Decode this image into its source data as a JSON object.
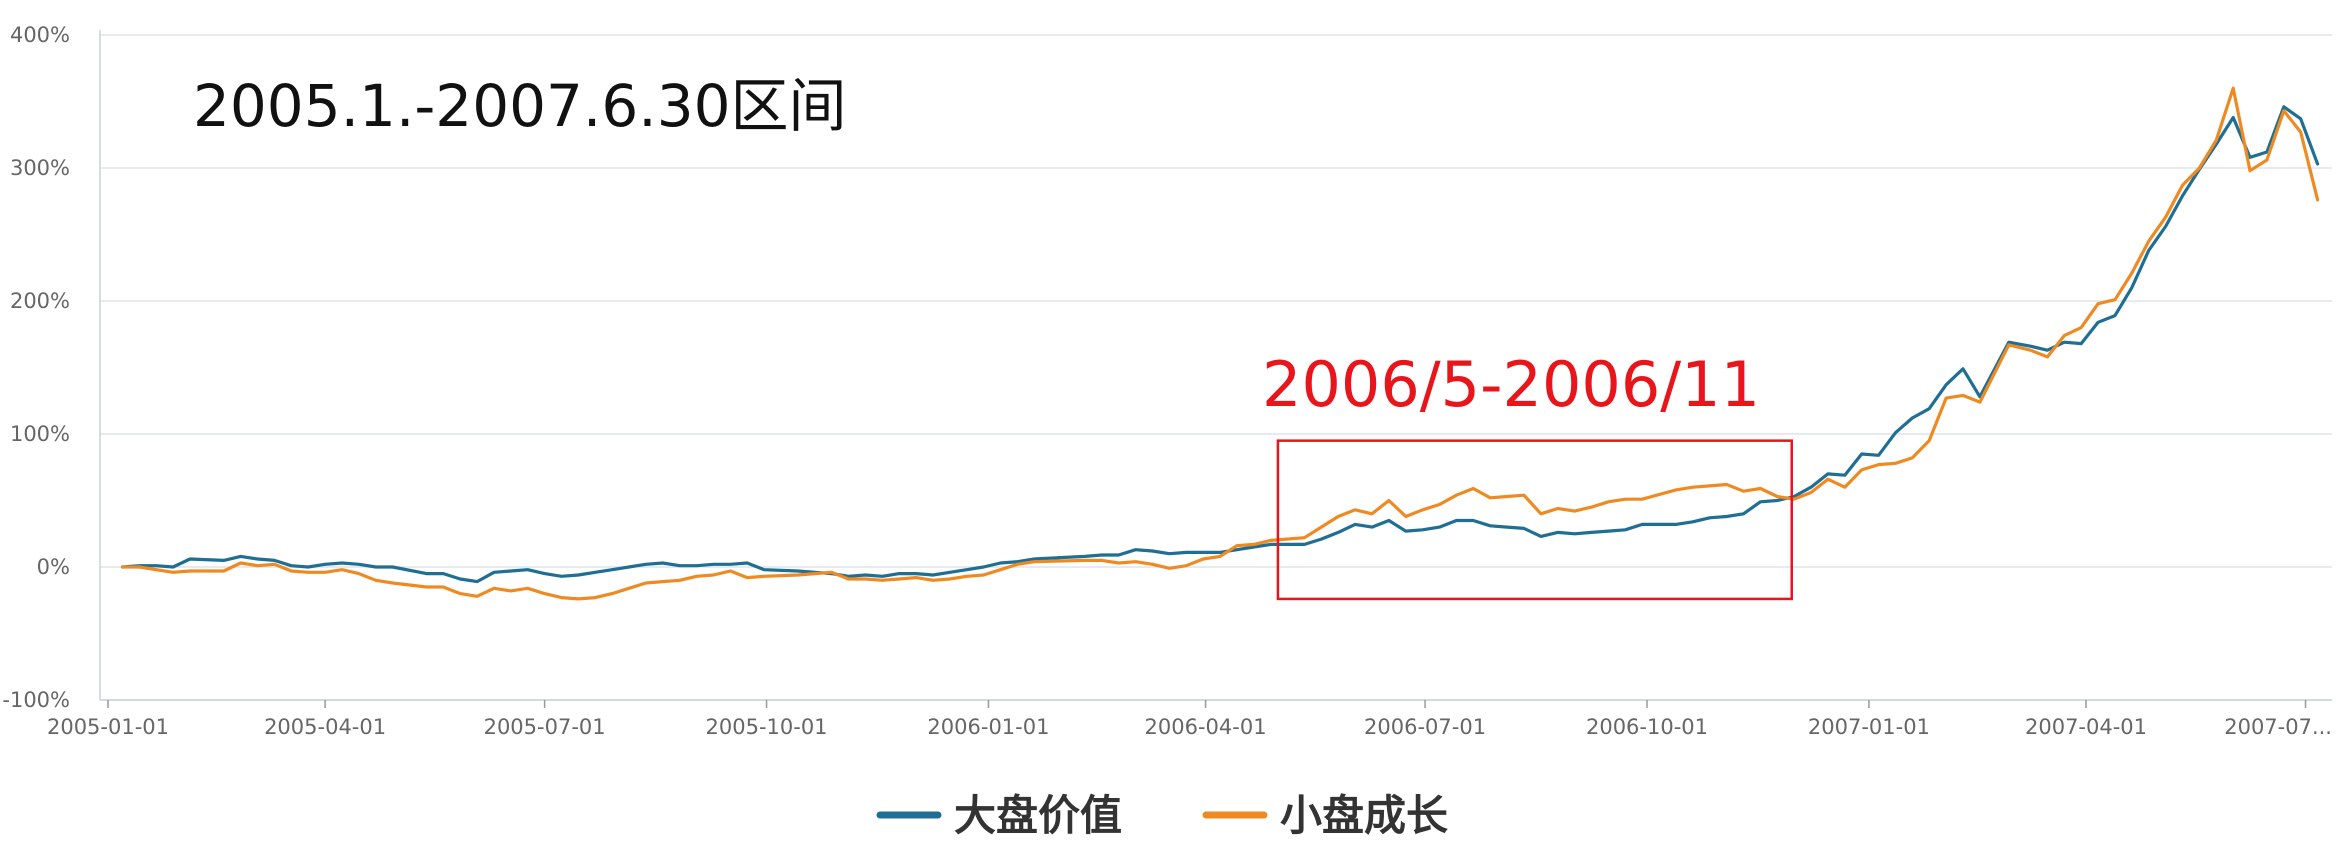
{
  "chart_data": {
    "type": "line",
    "ylim": [
      -100,
      400
    ],
    "y_ticks": [
      "400%",
      "300%",
      "200%",
      "100%",
      "0%",
      "-100%"
    ],
    "y_tick_values": [
      400,
      300,
      200,
      100,
      0,
      -100
    ],
    "x_ticks": [
      "2005-01-01",
      "2005-04-01",
      "2005-07-01",
      "2005-10-01",
      "2006-01-01",
      "2006-04-01",
      "2006-07-01",
      "2006-10-01",
      "2007-01-01",
      "2007-04-01",
      "2007-07..."
    ],
    "x_tick_dates": [
      "2005-01-01",
      "2005-04-01",
      "2005-07-01",
      "2005-10-01",
      "2006-01-01",
      "2006-04-01",
      "2006-07-01",
      "2006-10-01",
      "2007-01-01",
      "2007-04-01",
      "2007-07-01"
    ],
    "grid": true,
    "legend_position": "bottom",
    "annotation_title": "2005.1.-2007.6.30区间",
    "highlight": {
      "label": "2006/5-2006/11",
      "x_range": [
        "2006-05-01",
        "2006-11-30"
      ],
      "y_range": [
        -24,
        95
      ],
      "color": "#e8151b"
    },
    "series": [
      {
        "name": "大盘价值",
        "color": "#1f6e94",
        "points": [
          [
            "2005-01-07",
            0
          ],
          [
            "2005-01-14",
            1
          ],
          [
            "2005-01-21",
            1
          ],
          [
            "2005-01-28",
            0
          ],
          [
            "2005-02-04",
            6
          ],
          [
            "2005-02-18",
            5
          ],
          [
            "2005-02-25",
            8
          ],
          [
            "2005-03-04",
            6
          ],
          [
            "2005-03-11",
            5
          ],
          [
            "2005-03-18",
            1
          ],
          [
            "2005-03-25",
            0
          ],
          [
            "2005-04-01",
            2
          ],
          [
            "2005-04-08",
            3
          ],
          [
            "2005-04-15",
            2
          ],
          [
            "2005-04-22",
            0
          ],
          [
            "2005-04-29",
            0
          ],
          [
            "2005-05-13",
            -5
          ],
          [
            "2005-05-20",
            -5
          ],
          [
            "2005-05-27",
            -9
          ],
          [
            "2005-06-03",
            -11
          ],
          [
            "2005-06-10",
            -4
          ],
          [
            "2005-06-17",
            -3
          ],
          [
            "2005-06-24",
            -2
          ],
          [
            "2005-07-01",
            -5
          ],
          [
            "2005-07-08",
            -7
          ],
          [
            "2005-07-15",
            -6
          ],
          [
            "2005-07-22",
            -4
          ],
          [
            "2005-07-29",
            -2
          ],
          [
            "2005-08-05",
            0
          ],
          [
            "2005-08-12",
            2
          ],
          [
            "2005-08-19",
            3
          ],
          [
            "2005-08-26",
            1
          ],
          [
            "2005-09-02",
            1
          ],
          [
            "2005-09-09",
            2
          ],
          [
            "2005-09-16",
            2
          ],
          [
            "2005-09-23",
            3
          ],
          [
            "2005-09-30",
            -2
          ],
          [
            "2005-10-14",
            -3
          ],
          [
            "2005-10-21",
            -4
          ],
          [
            "2005-10-28",
            -5
          ],
          [
            "2005-11-04",
            -7
          ],
          [
            "2005-11-11",
            -6
          ],
          [
            "2005-11-18",
            -7
          ],
          [
            "2005-11-25",
            -5
          ],
          [
            "2005-12-02",
            -5
          ],
          [
            "2005-12-09",
            -6
          ],
          [
            "2005-12-16",
            -4
          ],
          [
            "2005-12-23",
            -2
          ],
          [
            "2005-12-30",
            0
          ],
          [
            "2006-01-06",
            3
          ],
          [
            "2006-01-13",
            4
          ],
          [
            "2006-01-20",
            6
          ],
          [
            "2006-02-10",
            8
          ],
          [
            "2006-02-17",
            9
          ],
          [
            "2006-02-24",
            9
          ],
          [
            "2006-03-03",
            13
          ],
          [
            "2006-03-10",
            12
          ],
          [
            "2006-03-17",
            10
          ],
          [
            "2006-03-24",
            11
          ],
          [
            "2006-03-31",
            11
          ],
          [
            "2006-04-07",
            11
          ],
          [
            "2006-04-14",
            13
          ],
          [
            "2006-04-21",
            15
          ],
          [
            "2006-04-28",
            17
          ],
          [
            "2006-05-12",
            17
          ],
          [
            "2006-05-19",
            21
          ],
          [
            "2006-05-26",
            26
          ],
          [
            "2006-06-02",
            32
          ],
          [
            "2006-06-09",
            30
          ],
          [
            "2006-06-16",
            35
          ],
          [
            "2006-06-23",
            27
          ],
          [
            "2006-06-30",
            28
          ],
          [
            "2006-07-07",
            30
          ],
          [
            "2006-07-14",
            35
          ],
          [
            "2006-07-21",
            35
          ],
          [
            "2006-07-28",
            31
          ],
          [
            "2006-08-04",
            30
          ],
          [
            "2006-08-11",
            29
          ],
          [
            "2006-08-18",
            23
          ],
          [
            "2006-08-25",
            26
          ],
          [
            "2006-09-01",
            25
          ],
          [
            "2006-09-08",
            26
          ],
          [
            "2006-09-15",
            27
          ],
          [
            "2006-09-22",
            28
          ],
          [
            "2006-09-29",
            32
          ],
          [
            "2006-10-13",
            32
          ],
          [
            "2006-10-20",
            34
          ],
          [
            "2006-10-27",
            37
          ],
          [
            "2006-11-03",
            38
          ],
          [
            "2006-11-10",
            40
          ],
          [
            "2006-11-17",
            49
          ],
          [
            "2006-11-24",
            50
          ],
          [
            "2006-12-01",
            53
          ],
          [
            "2006-12-08",
            60
          ],
          [
            "2006-12-15",
            70
          ],
          [
            "2006-12-22",
            69
          ],
          [
            "2006-12-29",
            85
          ],
          [
            "2007-01-05",
            84
          ],
          [
            "2007-01-12",
            101
          ],
          [
            "2007-01-19",
            112
          ],
          [
            "2007-01-26",
            119
          ],
          [
            "2007-02-02",
            137
          ],
          [
            "2007-02-09",
            149
          ],
          [
            "2007-02-16",
            128
          ],
          [
            "2007-02-28",
            169
          ],
          [
            "2007-03-09",
            166
          ],
          [
            "2007-03-16",
            163
          ],
          [
            "2007-03-23",
            169
          ],
          [
            "2007-03-30",
            168
          ],
          [
            "2007-04-06",
            184
          ],
          [
            "2007-04-13",
            189
          ],
          [
            "2007-04-20",
            210
          ],
          [
            "2007-04-27",
            238
          ],
          [
            "2007-05-04",
            256
          ],
          [
            "2007-05-11",
            279
          ],
          [
            "2007-05-18",
            299
          ],
          [
            "2007-05-25",
            318
          ],
          [
            "2007-06-01",
            338
          ],
          [
            "2007-06-08",
            308
          ],
          [
            "2007-06-15",
            312
          ],
          [
            "2007-06-22",
            346
          ],
          [
            "2007-06-29",
            337
          ],
          [
            "2007-07-06",
            303
          ]
        ]
      },
      {
        "name": "小盘成长",
        "color": "#ef8a22",
        "points": [
          [
            "2005-01-07",
            0
          ],
          [
            "2005-01-14",
            0
          ],
          [
            "2005-01-21",
            -2
          ],
          [
            "2005-01-28",
            -4
          ],
          [
            "2005-02-04",
            -3
          ],
          [
            "2005-02-18",
            -3
          ],
          [
            "2005-02-25",
            3
          ],
          [
            "2005-03-04",
            1
          ],
          [
            "2005-03-11",
            2
          ],
          [
            "2005-03-18",
            -3
          ],
          [
            "2005-03-25",
            -4
          ],
          [
            "2005-04-01",
            -4
          ],
          [
            "2005-04-08",
            -2
          ],
          [
            "2005-04-15",
            -5
          ],
          [
            "2005-04-22",
            -10
          ],
          [
            "2005-04-29",
            -12
          ],
          [
            "2005-05-13",
            -15
          ],
          [
            "2005-05-20",
            -15
          ],
          [
            "2005-05-27",
            -20
          ],
          [
            "2005-06-03",
            -22
          ],
          [
            "2005-06-10",
            -16
          ],
          [
            "2005-06-17",
            -18
          ],
          [
            "2005-06-24",
            -16
          ],
          [
            "2005-07-01",
            -20
          ],
          [
            "2005-07-08",
            -23
          ],
          [
            "2005-07-15",
            -24
          ],
          [
            "2005-07-22",
            -23
          ],
          [
            "2005-07-29",
            -20
          ],
          [
            "2005-08-05",
            -16
          ],
          [
            "2005-08-12",
            -12
          ],
          [
            "2005-08-19",
            -11
          ],
          [
            "2005-08-26",
            -10
          ],
          [
            "2005-09-02",
            -7
          ],
          [
            "2005-09-09",
            -6
          ],
          [
            "2005-09-16",
            -3
          ],
          [
            "2005-09-23",
            -8
          ],
          [
            "2005-09-30",
            -7
          ],
          [
            "2005-10-14",
            -6
          ],
          [
            "2005-10-21",
            -5
          ],
          [
            "2005-10-28",
            -4
          ],
          [
            "2005-11-04",
            -9
          ],
          [
            "2005-11-11",
            -9
          ],
          [
            "2005-11-18",
            -10
          ],
          [
            "2005-11-25",
            -9
          ],
          [
            "2005-12-02",
            -8
          ],
          [
            "2005-12-09",
            -10
          ],
          [
            "2005-12-16",
            -9
          ],
          [
            "2005-12-23",
            -7
          ],
          [
            "2005-12-30",
            -6
          ],
          [
            "2006-01-06",
            -2
          ],
          [
            "2006-01-13",
            2
          ],
          [
            "2006-01-20",
            4
          ],
          [
            "2006-02-10",
            5
          ],
          [
            "2006-02-17",
            5
          ],
          [
            "2006-02-24",
            3
          ],
          [
            "2006-03-03",
            4
          ],
          [
            "2006-03-10",
            2
          ],
          [
            "2006-03-17",
            -1
          ],
          [
            "2006-03-24",
            1
          ],
          [
            "2006-03-31",
            6
          ],
          [
            "2006-04-07",
            8
          ],
          [
            "2006-04-14",
            16
          ],
          [
            "2006-04-21",
            17
          ],
          [
            "2006-04-28",
            20
          ],
          [
            "2006-05-12",
            22
          ],
          [
            "2006-05-19",
            30
          ],
          [
            "2006-05-26",
            38
          ],
          [
            "2006-06-02",
            43
          ],
          [
            "2006-06-09",
            40
          ],
          [
            "2006-06-16",
            50
          ],
          [
            "2006-06-23",
            38
          ],
          [
            "2006-06-30",
            43
          ],
          [
            "2006-07-07",
            47
          ],
          [
            "2006-07-14",
            54
          ],
          [
            "2006-07-21",
            59
          ],
          [
            "2006-07-28",
            52
          ],
          [
            "2006-08-04",
            53
          ],
          [
            "2006-08-11",
            54
          ],
          [
            "2006-08-18",
            40
          ],
          [
            "2006-08-25",
            44
          ],
          [
            "2006-09-01",
            42
          ],
          [
            "2006-09-08",
            45
          ],
          [
            "2006-09-15",
            49
          ],
          [
            "2006-09-22",
            51
          ],
          [
            "2006-09-29",
            51
          ],
          [
            "2006-10-13",
            58
          ],
          [
            "2006-10-20",
            60
          ],
          [
            "2006-10-27",
            61
          ],
          [
            "2006-11-03",
            62
          ],
          [
            "2006-11-10",
            57
          ],
          [
            "2006-11-17",
            59
          ],
          [
            "2006-11-24",
            53
          ],
          [
            "2006-12-01",
            51
          ],
          [
            "2006-12-08",
            56
          ],
          [
            "2006-12-15",
            66
          ],
          [
            "2006-12-22",
            60
          ],
          [
            "2006-12-29",
            73
          ],
          [
            "2007-01-05",
            77
          ],
          [
            "2007-01-12",
            78
          ],
          [
            "2007-01-19",
            82
          ],
          [
            "2007-01-26",
            95
          ],
          [
            "2007-02-02",
            127
          ],
          [
            "2007-02-09",
            129
          ],
          [
            "2007-02-16",
            124
          ],
          [
            "2007-02-28",
            167
          ],
          [
            "2007-03-09",
            163
          ],
          [
            "2007-03-16",
            158
          ],
          [
            "2007-03-23",
            174
          ],
          [
            "2007-03-30",
            180
          ],
          [
            "2007-04-06",
            198
          ],
          [
            "2007-04-13",
            201
          ],
          [
            "2007-04-20",
            221
          ],
          [
            "2007-04-27",
            245
          ],
          [
            "2007-05-04",
            263
          ],
          [
            "2007-05-11",
            287
          ],
          [
            "2007-05-18",
            300
          ],
          [
            "2007-05-25",
            321
          ],
          [
            "2007-06-01",
            360
          ],
          [
            "2007-06-08",
            298
          ],
          [
            "2007-06-15",
            306
          ],
          [
            "2007-06-22",
            343
          ],
          [
            "2007-06-29",
            327
          ],
          [
            "2007-07-06",
            276
          ]
        ]
      }
    ]
  }
}
